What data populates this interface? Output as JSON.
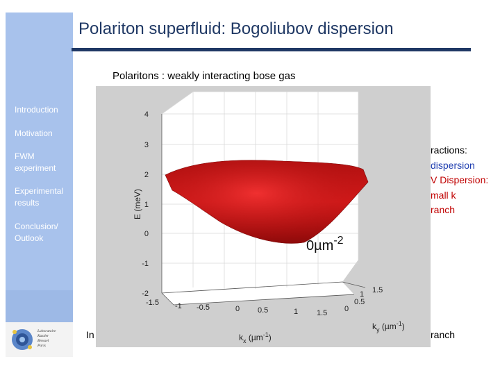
{
  "slide": {
    "title": "Polariton superfluid: Bogoliubov dispersion",
    "subtitle": "Polaritons : weakly interacting bose gas"
  },
  "nav": {
    "items": [
      {
        "label": "Introduction"
      },
      {
        "label": "Motivation"
      },
      {
        "label": "FWM experiment"
      },
      {
        "label": "Experimental results"
      },
      {
        "label": "Conclusion/ Outlook"
      }
    ]
  },
  "background_text": {
    "right_lines": [
      "ractions:",
      "dispersion",
      "V Dispersion:",
      "mall k",
      "ranch"
    ],
    "bottom_right": "ranch",
    "bottom_left": "In"
  },
  "plot": {
    "zlabel": "E (meV)",
    "xlabel_main": "k",
    "xlabel_sub": "x",
    "xlabel_unit": " (µm",
    "xlabel_exp": "-1",
    "xlabel_close": ")",
    "ylabel_main": "k",
    "ylabel_sub": "y",
    "ylabel_unit": " (µm",
    "ylabel_exp": "-1",
    "ylabel_close": ")",
    "density_label": "0µm",
    "density_exp": "-2",
    "surface_color": "#c00000"
  },
  "chart_data": {
    "type": "surface",
    "zlabel": "E (meV)",
    "xlabel": "kx (µm-1)",
    "ylabel": "ky (µm-1)",
    "xlim": [
      -1.5,
      1.5
    ],
    "ylim": [
      0,
      1.5
    ],
    "zlim": [
      -2,
      4
    ],
    "z_ticks": [
      "4",
      "3",
      "2",
      "1",
      "0",
      "-1",
      "-2"
    ],
    "x_ticks": [
      "-1.5",
      "-1",
      "-0.5",
      "0",
      "0.5",
      "1",
      "1.5"
    ],
    "y_ticks": [
      "0",
      "0.5",
      "1",
      "1.5"
    ],
    "annotation": "0µm-2",
    "surface": "parabolic polariton dispersion, minimum E≈0 at k=0, rising to ≈2 meV at |kx|=1.5"
  }
}
